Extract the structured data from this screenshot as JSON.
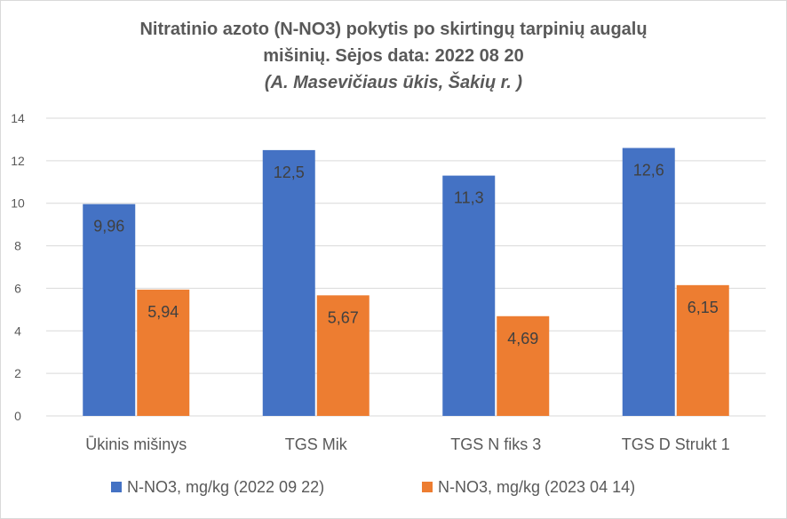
{
  "chart_data": {
    "type": "bar",
    "title": "Nitratinio azoto (N-NO3) pokytis po skirtingų tarpinių augalų mišinių. Sėjos data: 2022 08 20",
    "title_lines": [
      "Nitratinio azoto (N-NO3) pokytis po skirtingų tarpinių augalų",
      "mišinių. Sėjos data: 2022 08 20"
    ],
    "subtitle": "(A. Masevičiaus ūkis, Šakių r. )",
    "xlabel": "",
    "ylabel": "",
    "categories": [
      "Ūkinis mišinys",
      "TGS Mik",
      "TGS N fiks 3",
      "TGS D Strukt 1"
    ],
    "series": [
      {
        "name": "N-NO3, mg/kg (2022 09 22)",
        "color": "#4472c4",
        "values": [
          9.96,
          12.5,
          11.3,
          12.6
        ],
        "labels": [
          "9,96",
          "12,5",
          "11,3",
          "12,6"
        ]
      },
      {
        "name": "N-NO3, mg/kg (2023 04 14)",
        "color": "#ed7d31",
        "values": [
          5.94,
          5.67,
          4.69,
          6.15
        ],
        "labels": [
          "5,94",
          "5,67",
          "4,69",
          "6,15"
        ]
      }
    ],
    "ylim": [
      0,
      14
    ],
    "yticks": [
      0,
      2,
      4,
      6,
      8,
      10,
      12,
      14
    ],
    "grid": true,
    "legend_position": "bottom"
  }
}
